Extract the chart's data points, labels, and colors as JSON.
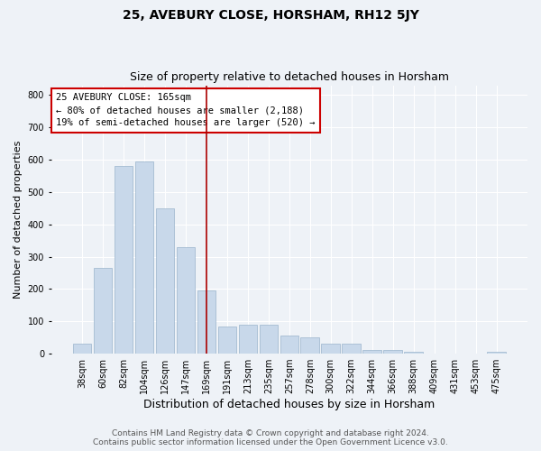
{
  "title": "25, AVEBURY CLOSE, HORSHAM, RH12 5JY",
  "subtitle": "Size of property relative to detached houses in Horsham",
  "xlabel": "Distribution of detached houses by size in Horsham",
  "ylabel": "Number of detached properties",
  "footer_line1": "Contains HM Land Registry data © Crown copyright and database right 2024.",
  "footer_line2": "Contains public sector information licensed under the Open Government Licence v3.0.",
  "categories": [
    "38sqm",
    "60sqm",
    "82sqm",
    "104sqm",
    "126sqm",
    "147sqm",
    "169sqm",
    "191sqm",
    "213sqm",
    "235sqm",
    "257sqm",
    "278sqm",
    "300sqm",
    "322sqm",
    "344sqm",
    "366sqm",
    "388sqm",
    "409sqm",
    "431sqm",
    "453sqm",
    "475sqm"
  ],
  "values": [
    30,
    265,
    580,
    595,
    448,
    330,
    195,
    85,
    90,
    90,
    55,
    50,
    30,
    30,
    10,
    10,
    5,
    0,
    0,
    0,
    5
  ],
  "bar_color": "#c8d8ea",
  "bar_edge_color": "#9ab4cc",
  "vline_x": 6,
  "vline_color": "#aa0000",
  "annotation_text": "25 AVEBURY CLOSE: 165sqm\n← 80% of detached houses are smaller (2,188)\n19% of semi-detached houses are larger (520) →",
  "annotation_box_color": "#ffffff",
  "annotation_box_edge_color": "#cc0000",
  "ylim": [
    0,
    830
  ],
  "yticks": [
    0,
    100,
    200,
    300,
    400,
    500,
    600,
    700,
    800
  ],
  "background_color": "#eef2f7",
  "grid_color": "#ffffff",
  "title_fontsize": 10,
  "subtitle_fontsize": 9,
  "ylabel_fontsize": 8,
  "xlabel_fontsize": 9,
  "tick_fontsize": 7,
  "footer_fontsize": 6.5,
  "annotation_fontsize": 7.5
}
